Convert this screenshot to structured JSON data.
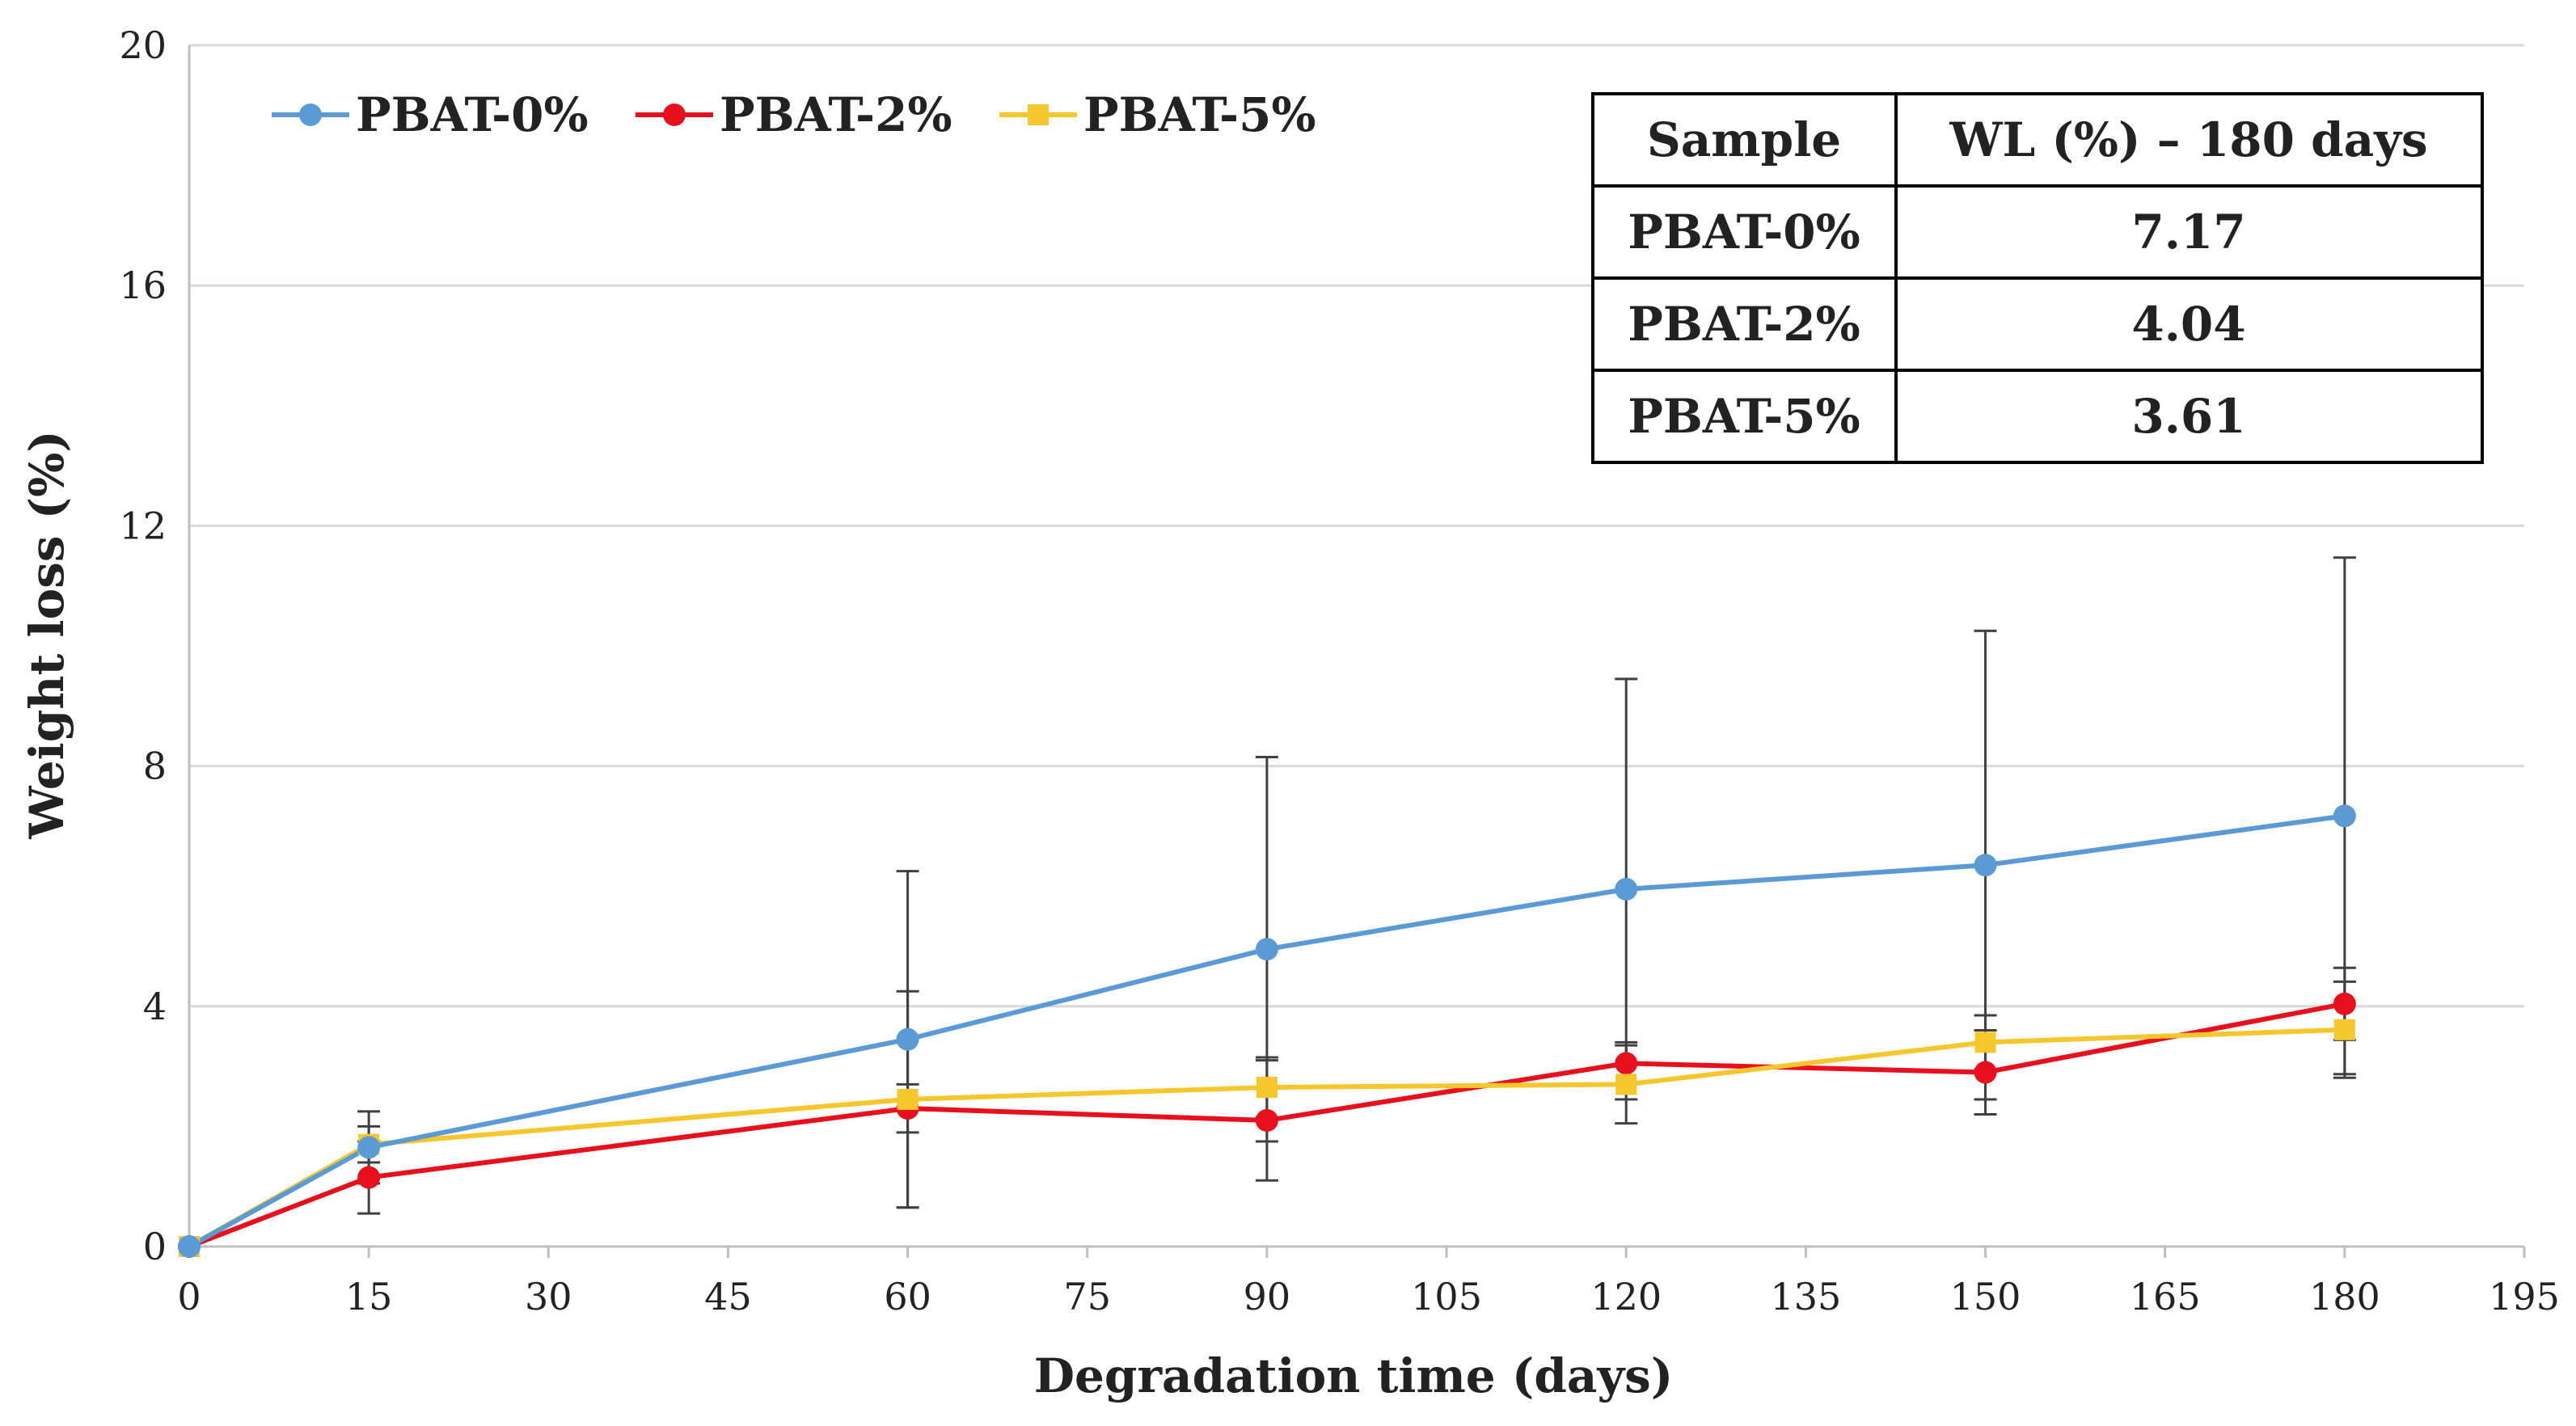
{
  "chart_data": {
    "type": "line",
    "xlabel": "Degradation time (days)",
    "ylabel": "Weight loss (%)",
    "xlim": [
      0,
      195
    ],
    "ylim": [
      0,
      20
    ],
    "x_ticks": [
      0,
      15,
      30,
      45,
      60,
      75,
      90,
      105,
      120,
      135,
      150,
      165,
      180,
      195
    ],
    "y_ticks": [
      0,
      4,
      8,
      12,
      16,
      20
    ],
    "grid": "horizontal",
    "legend_position": "top-left",
    "x": [
      0,
      15,
      60,
      90,
      120,
      150,
      180
    ],
    "series": [
      {
        "name": "PBAT-0%",
        "color": "#5B9BD5",
        "marker": "circle",
        "values": [
          0,
          1.65,
          3.45,
          4.95,
          5.95,
          6.35,
          7.17
        ],
        "error": [
          0,
          0.6,
          2.8,
          3.2,
          3.5,
          3.9,
          4.3
        ]
      },
      {
        "name": "PBAT-2%",
        "color": "#E8101C",
        "marker": "circle",
        "values": [
          0,
          1.15,
          2.3,
          2.1,
          3.05,
          2.9,
          4.04
        ],
        "error": [
          0,
          0.6,
          0.4,
          1.0,
          0.35,
          0.7,
          0.6
        ]
      },
      {
        "name": "PBAT-5%",
        "color": "#F5C72C",
        "marker": "square",
        "values": [
          0,
          1.7,
          2.45,
          2.65,
          2.7,
          3.4,
          3.61
        ],
        "error": [
          0,
          0.3,
          1.8,
          0.5,
          0.65,
          0.45,
          0.8
        ]
      }
    ],
    "inset_table": {
      "headers": [
        "Sample",
        "WL (%) – 180 days"
      ],
      "rows": [
        [
          "PBAT-0%",
          "7.17"
        ],
        [
          "PBAT-2%",
          "4.04"
        ],
        [
          "PBAT-5%",
          "3.61"
        ]
      ]
    }
  }
}
